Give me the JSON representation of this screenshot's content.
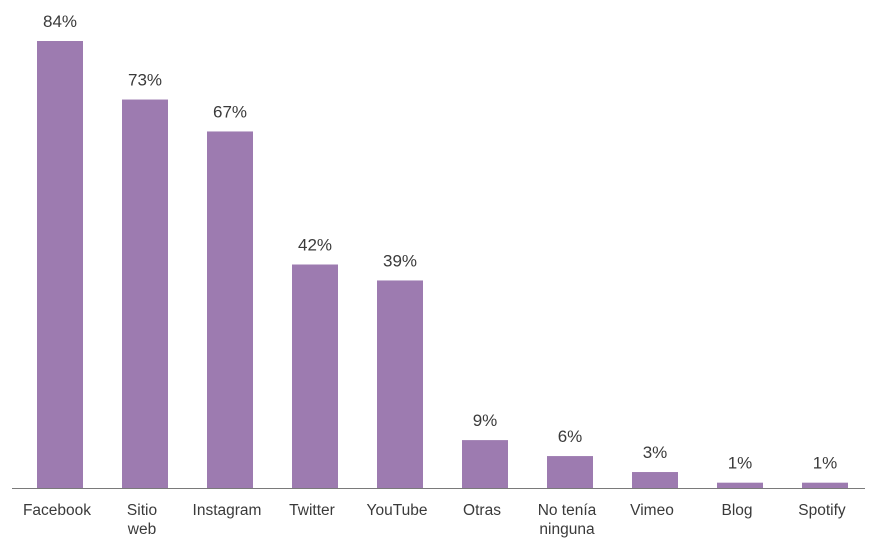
{
  "chart_data": {
    "type": "bar",
    "title": "",
    "xlabel": "",
    "ylabel": "",
    "ylim": [
      0,
      84
    ],
    "grid": false,
    "legend": "none",
    "bar_color": "#9d7bb0",
    "axis_color": "#7a7a7a",
    "categories": [
      [
        "Facebook"
      ],
      [
        "Sitio",
        "web"
      ],
      [
        "Instagram"
      ],
      [
        "Twitter"
      ],
      [
        "YouTube"
      ],
      [
        "Otras"
      ],
      [
        "No tenía",
        "ninguna"
      ],
      [
        "Vimeo"
      ],
      [
        "Blog"
      ],
      [
        "Spotify"
      ]
    ],
    "values": [
      84,
      73,
      67,
      42,
      39,
      9,
      6,
      3,
      1,
      1
    ],
    "value_labels": [
      "84%",
      "73%",
      "67%",
      "42%",
      "39%",
      "9%",
      "6%",
      "3%",
      "1%",
      "1%"
    ]
  }
}
